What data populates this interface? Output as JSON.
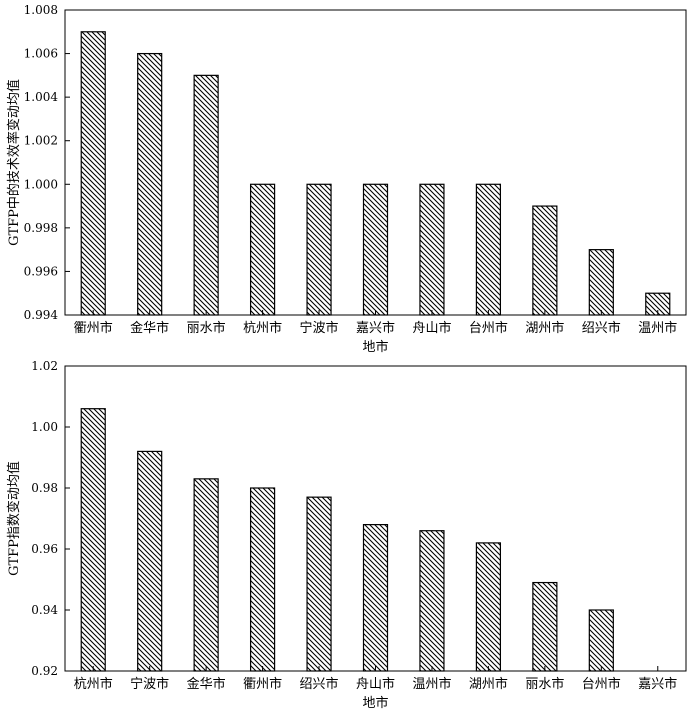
{
  "chart_data": [
    {
      "type": "bar",
      "xlabel": "地市",
      "ylabel": "GTFP中的技术效率变动均值",
      "categories": [
        "衢州市",
        "金华市",
        "丽水市",
        "杭州市",
        "宁波市",
        "嘉兴市",
        "舟山市",
        "台州市",
        "湖州市",
        "绍兴市",
        "温州市"
      ],
      "values": [
        1.007,
        1.006,
        1.005,
        1.0,
        1.0,
        1.0,
        1.0,
        1.0,
        0.999,
        0.997,
        0.995
      ],
      "ylim": [
        0.994,
        1.008
      ],
      "yticks": [
        "0.994",
        "0.996",
        "0.998",
        "1.000",
        "1.002",
        "1.004",
        "1.006",
        "1.008"
      ],
      "bar_fill": "diagonal-hatch",
      "grid": false,
      "legend": "none"
    },
    {
      "type": "bar",
      "xlabel": "地市",
      "ylabel": "GTFP指数变动均值",
      "categories": [
        "杭州市",
        "宁波市",
        "金华市",
        "衢州市",
        "绍兴市",
        "舟山市",
        "温州市",
        "湖州市",
        "丽水市",
        "台州市",
        "嘉兴市"
      ],
      "values": [
        1.006,
        0.992,
        0.983,
        0.98,
        0.977,
        0.968,
        0.966,
        0.962,
        0.949,
        0.94,
        0.92
      ],
      "ylim": [
        0.92,
        1.02
      ],
      "yticks": [
        "0.92",
        "0.94",
        "0.96",
        "0.98",
        "1.00",
        "1.02"
      ],
      "bar_fill": "diagonal-hatch",
      "grid": false,
      "legend": "none"
    }
  ]
}
